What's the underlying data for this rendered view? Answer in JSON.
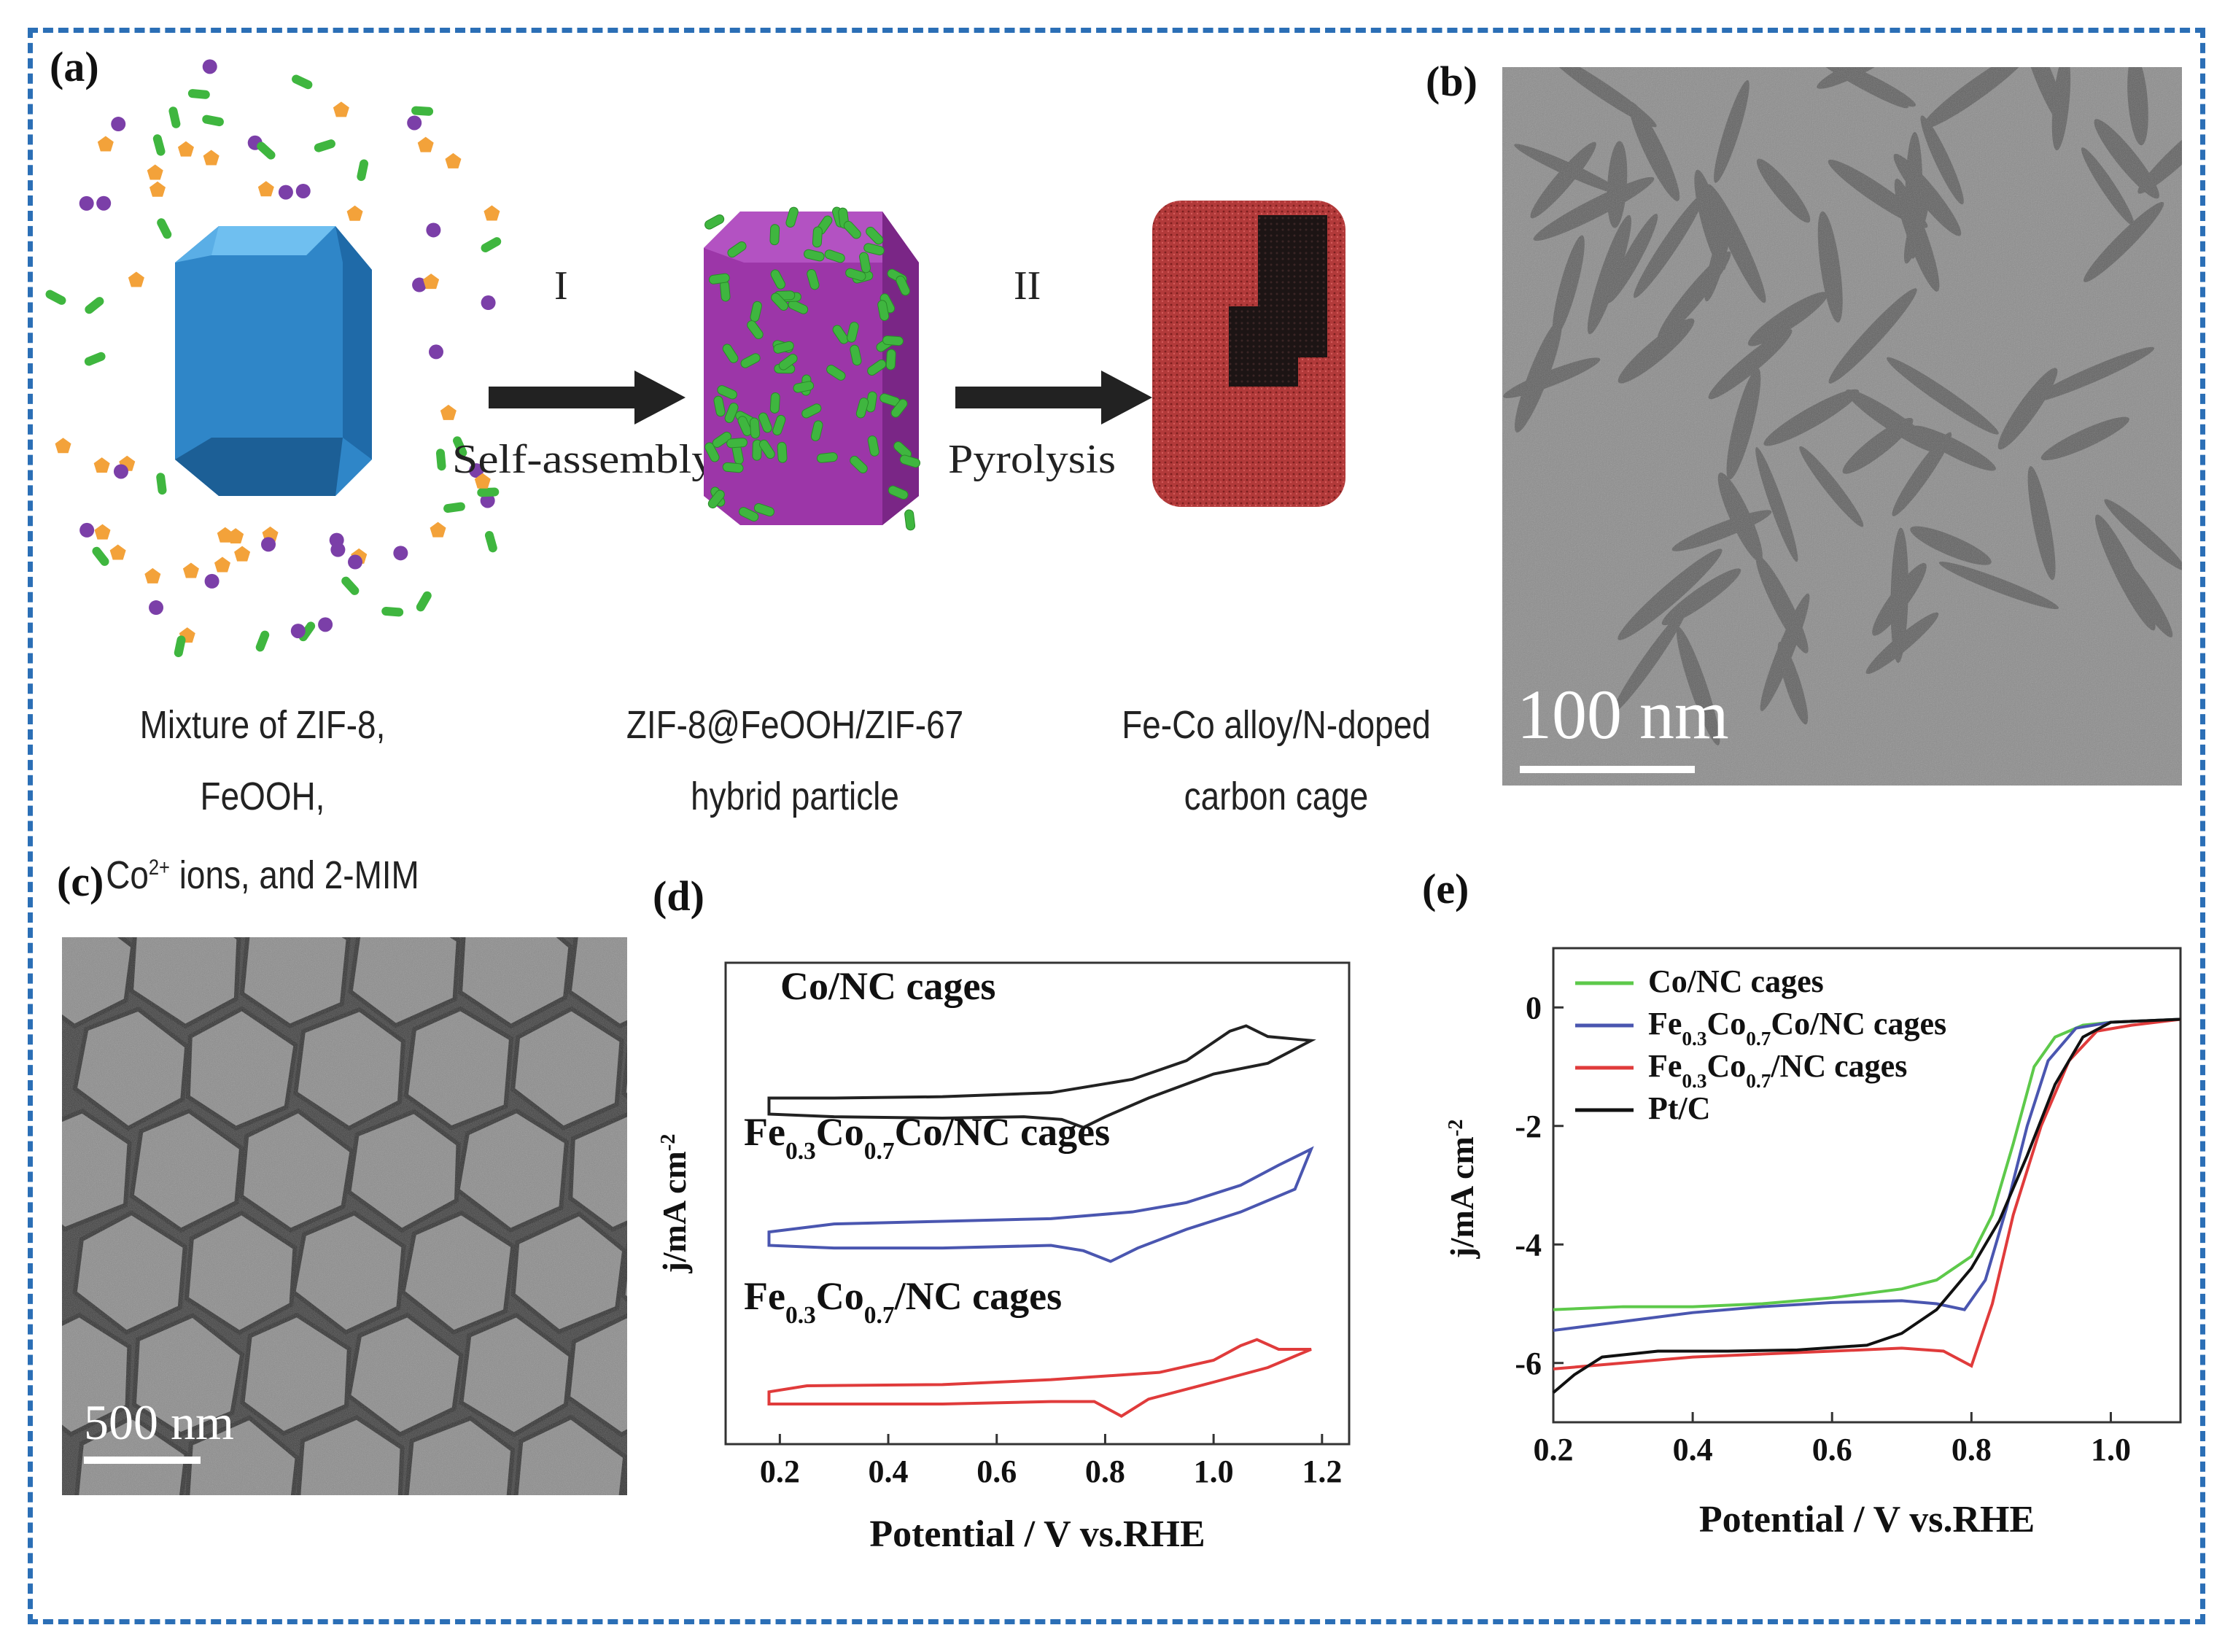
{
  "panels": {
    "a": {
      "label": "(a)",
      "step1": {
        "roman": "I",
        "text": "Self-assembly"
      },
      "step2": {
        "roman": "II",
        "text": "Pyrolysis"
      },
      "captions": [
        {
          "line1": "Mixture of ZIF-8, FeOOH,",
          "line2_pre": "Co",
          "line2_sup": "2+",
          "line2_post": " ions, and 2-MIM"
        },
        {
          "line1": "ZIF-8@FeOOH/ZIF-67",
          "line2": "hybrid particle"
        },
        {
          "line1": "Fe-Co alloy/N-doped",
          "line2": "carbon cage"
        }
      ],
      "colors": {
        "zif8": "#2f86c8",
        "hybrid": "#9c36a8",
        "cage": "#b23a3a",
        "rod": "#3fb63f",
        "ion_purple": "#7b3fa8",
        "ion_orange": "#f3a23a"
      }
    },
    "b": {
      "label": "(b)",
      "scale_bar": "100 nm"
    },
    "c": {
      "label": "(c)",
      "scale_bar": "500 nm"
    },
    "d": {
      "label": "(d)"
    },
    "e": {
      "label": "(e)"
    }
  },
  "chart_data": [
    {
      "panel": "d",
      "type": "line",
      "xlabel": "Potential / V vs.RHE",
      "ylabel": "j/mA cm-2",
      "xlim": [
        0.1,
        1.25
      ],
      "xticks": [
        "0.2",
        "0.4",
        "0.6",
        "0.8",
        "1.0",
        "1.2"
      ],
      "y_ticks_shown": false,
      "series": [
        {
          "name": "Co/NC cages",
          "color": "#222222",
          "offset": 2,
          "upper": [
            [
              0.18,
              0.12
            ],
            [
              0.3,
              0.12
            ],
            [
              0.5,
              0.13
            ],
            [
              0.7,
              0.16
            ],
            [
              0.85,
              0.26
            ],
            [
              0.95,
              0.4
            ],
            [
              1.03,
              0.62
            ],
            [
              1.06,
              0.66
            ],
            [
              1.1,
              0.58
            ],
            [
              1.18,
              0.55
            ]
          ],
          "lower": [
            [
              0.18,
              0.0
            ],
            [
              0.3,
              -0.02
            ],
            [
              0.5,
              -0.03
            ],
            [
              0.65,
              -0.02
            ],
            [
              0.72,
              -0.04
            ],
            [
              0.76,
              -0.1
            ],
            [
              0.8,
              -0.02
            ],
            [
              0.88,
              0.12
            ],
            [
              1.0,
              0.3
            ],
            [
              1.1,
              0.38
            ],
            [
              1.18,
              0.55
            ]
          ]
        },
        {
          "name": "Fe0.3Co0.7Co/NC cages",
          "color": "#4a56b0",
          "offset": 1,
          "upper": [
            [
              0.18,
              0.1
            ],
            [
              0.3,
              0.16
            ],
            [
              0.5,
              0.18
            ],
            [
              0.7,
              0.2
            ],
            [
              0.85,
              0.25
            ],
            [
              0.95,
              0.32
            ],
            [
              1.05,
              0.45
            ],
            [
              1.12,
              0.6
            ],
            [
              1.18,
              0.72
            ]
          ],
          "lower": [
            [
              0.18,
              0.0
            ],
            [
              0.3,
              -0.02
            ],
            [
              0.5,
              -0.02
            ],
            [
              0.7,
              0.0
            ],
            [
              0.76,
              -0.04
            ],
            [
              0.81,
              -0.12
            ],
            [
              0.86,
              -0.02
            ],
            [
              0.95,
              0.12
            ],
            [
              1.05,
              0.25
            ],
            [
              1.15,
              0.42
            ],
            [
              1.18,
              0.72
            ]
          ]
        },
        {
          "name": "Fe0.3Co0.7/NC cages",
          "color": "#e03b3b",
          "offset": 0,
          "upper": [
            [
              0.18,
              0.1
            ],
            [
              0.25,
              0.15
            ],
            [
              0.5,
              0.16
            ],
            [
              0.7,
              0.2
            ],
            [
              0.9,
              0.26
            ],
            [
              1.0,
              0.36
            ],
            [
              1.05,
              0.48
            ],
            [
              1.08,
              0.53
            ],
            [
              1.12,
              0.45
            ],
            [
              1.18,
              0.45
            ]
          ],
          "lower": [
            [
              0.18,
              0.0
            ],
            [
              0.3,
              0.0
            ],
            [
              0.5,
              0.0
            ],
            [
              0.7,
              0.02
            ],
            [
              0.78,
              0.02
            ],
            [
              0.83,
              -0.1
            ],
            [
              0.88,
              0.04
            ],
            [
              1.0,
              0.18
            ],
            [
              1.1,
              0.3
            ],
            [
              1.18,
              0.45
            ]
          ]
        }
      ]
    },
    {
      "panel": "e",
      "type": "line",
      "xlabel": "Potential / V vs.RHE",
      "ylabel": "j/mA cm-2",
      "xlim": [
        0.2,
        1.1
      ],
      "ylim": [
        -7,
        1
      ],
      "xticks": [
        0.2,
        0.4,
        0.6,
        0.8,
        1.0
      ],
      "xtick_labels": [
        "0.2",
        "0.4",
        "0.6",
        "0.8",
        "1.0"
      ],
      "yticks": [
        0,
        -2,
        -4,
        -6
      ],
      "ytick_labels": [
        "0",
        "-2",
        "-4",
        "-6"
      ],
      "legend": "top-left",
      "series": [
        {
          "name": "Co/NC cages",
          "color": "#5dc94a",
          "points": [
            [
              0.2,
              -5.1
            ],
            [
              0.3,
              -5.05
            ],
            [
              0.4,
              -5.05
            ],
            [
              0.5,
              -5.0
            ],
            [
              0.6,
              -4.9
            ],
            [
              0.7,
              -4.75
            ],
            [
              0.75,
              -4.6
            ],
            [
              0.8,
              -4.2
            ],
            [
              0.83,
              -3.5
            ],
            [
              0.86,
              -2.3
            ],
            [
              0.89,
              -1.0
            ],
            [
              0.92,
              -0.5
            ],
            [
              0.96,
              -0.3
            ],
            [
              1.0,
              -0.25
            ],
            [
              1.1,
              -0.2
            ]
          ]
        },
        {
          "name": "Fe0.3Co0.7Co/NC cages",
          "color": "#4a56b0",
          "points": [
            [
              0.2,
              -5.45
            ],
            [
              0.3,
              -5.3
            ],
            [
              0.4,
              -5.15
            ],
            [
              0.5,
              -5.05
            ],
            [
              0.6,
              -4.98
            ],
            [
              0.7,
              -4.95
            ],
            [
              0.75,
              -5.0
            ],
            [
              0.79,
              -5.1
            ],
            [
              0.82,
              -4.6
            ],
            [
              0.85,
              -3.4
            ],
            [
              0.88,
              -2.0
            ],
            [
              0.91,
              -0.9
            ],
            [
              0.95,
              -0.35
            ],
            [
              1.0,
              -0.25
            ],
            [
              1.1,
              -0.2
            ]
          ]
        },
        {
          "name": "Fe0.3Co0.7/NC cages",
          "color": "#e03b3b",
          "points": [
            [
              0.2,
              -6.1
            ],
            [
              0.3,
              -6.0
            ],
            [
              0.4,
              -5.9
            ],
            [
              0.5,
              -5.85
            ],
            [
              0.6,
              -5.8
            ],
            [
              0.7,
              -5.75
            ],
            [
              0.76,
              -5.8
            ],
            [
              0.8,
              -6.05
            ],
            [
              0.83,
              -5.0
            ],
            [
              0.86,
              -3.5
            ],
            [
              0.9,
              -2.0
            ],
            [
              0.94,
              -0.9
            ],
            [
              0.98,
              -0.4
            ],
            [
              1.03,
              -0.3
            ],
            [
              1.1,
              -0.2
            ]
          ]
        },
        {
          "name": "Pt/C",
          "color": "#111111",
          "points": [
            [
              0.2,
              -6.5
            ],
            [
              0.23,
              -6.2
            ],
            [
              0.27,
              -5.9
            ],
            [
              0.35,
              -5.8
            ],
            [
              0.45,
              -5.8
            ],
            [
              0.55,
              -5.78
            ],
            [
              0.65,
              -5.7
            ],
            [
              0.7,
              -5.5
            ],
            [
              0.75,
              -5.1
            ],
            [
              0.8,
              -4.4
            ],
            [
              0.84,
              -3.6
            ],
            [
              0.88,
              -2.5
            ],
            [
              0.92,
              -1.3
            ],
            [
              0.96,
              -0.5
            ],
            [
              1.0,
              -0.25
            ],
            [
              1.1,
              -0.2
            ]
          ]
        }
      ]
    }
  ]
}
